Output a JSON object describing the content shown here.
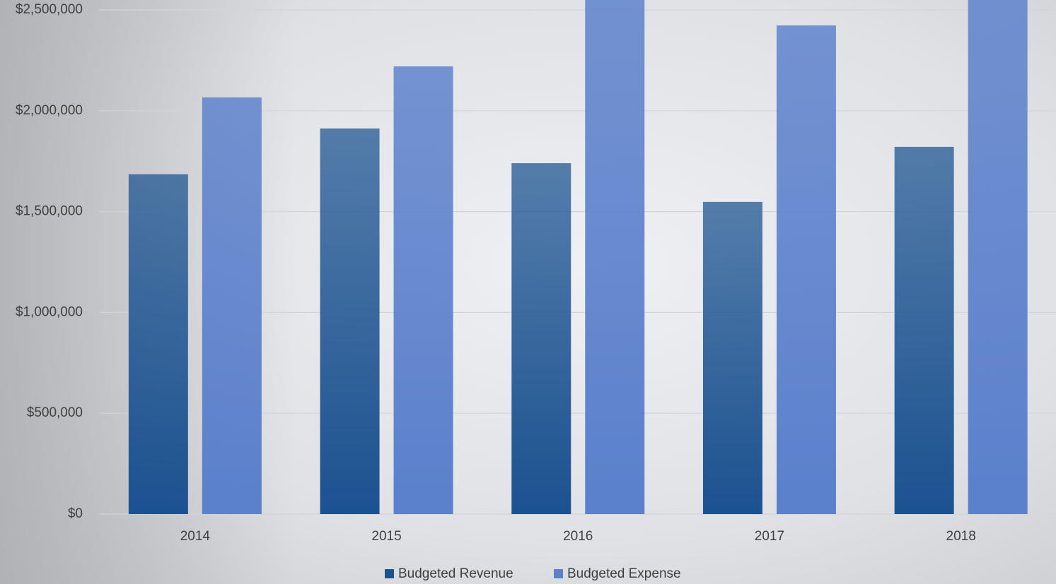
{
  "chart_data": {
    "type": "bar",
    "categories": [
      "2014",
      "2015",
      "2016",
      "2017",
      "2018"
    ],
    "series": [
      {
        "name": "Budgeted Revenue",
        "color": "#1b5290",
        "values": [
          1685000,
          1912000,
          1740000,
          1548000,
          1821000
        ]
      },
      {
        "name": "Budgeted Expense",
        "color": "#5b80cc",
        "values": [
          2066000,
          2220000,
          2650000,
          2423000,
          2700000
        ]
      }
    ],
    "ylim": [
      0,
      2500000
    ],
    "yticks": [
      {
        "value": 0,
        "label": "$0"
      },
      {
        "value": 500000,
        "label": "$500,000"
      },
      {
        "value": 1000000,
        "label": "$1,000,000"
      },
      {
        "value": 1500000,
        "label": "$1,500,000"
      },
      {
        "value": 2000000,
        "label": "$2,000,000"
      },
      {
        "value": 2500000,
        "label": "$2,500,000"
      }
    ],
    "grid": true,
    "legend": "bottom"
  }
}
